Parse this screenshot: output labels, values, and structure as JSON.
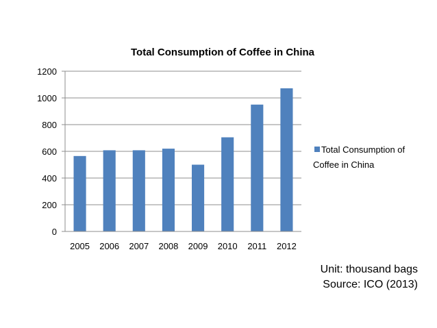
{
  "chart_data": {
    "type": "bar",
    "title": "Total Consumption of Coffee in China",
    "categories": [
      "2005",
      "2006",
      "2007",
      "2008",
      "2009",
      "2010",
      "2011",
      "2012"
    ],
    "series": [
      {
        "name": "Total Consumption of Coffee in China",
        "values": [
          565,
          608,
          608,
          620,
          500,
          705,
          950,
          1072
        ]
      }
    ],
    "ylim": [
      0,
      1200
    ],
    "yticks": [
      0,
      200,
      400,
      600,
      800,
      1000,
      1200
    ],
    "grid": true,
    "legend": "right",
    "colors": {
      "bar": "#4F81BD",
      "grid": "#8C8C8C",
      "axis": "#8C8C8C"
    }
  },
  "legend": {
    "lines": [
      "Total Consumption of",
      "Coffee in China"
    ]
  },
  "notes": {
    "unit": "Unit: thousand bags",
    "source": "Source: ICO (2013)"
  }
}
